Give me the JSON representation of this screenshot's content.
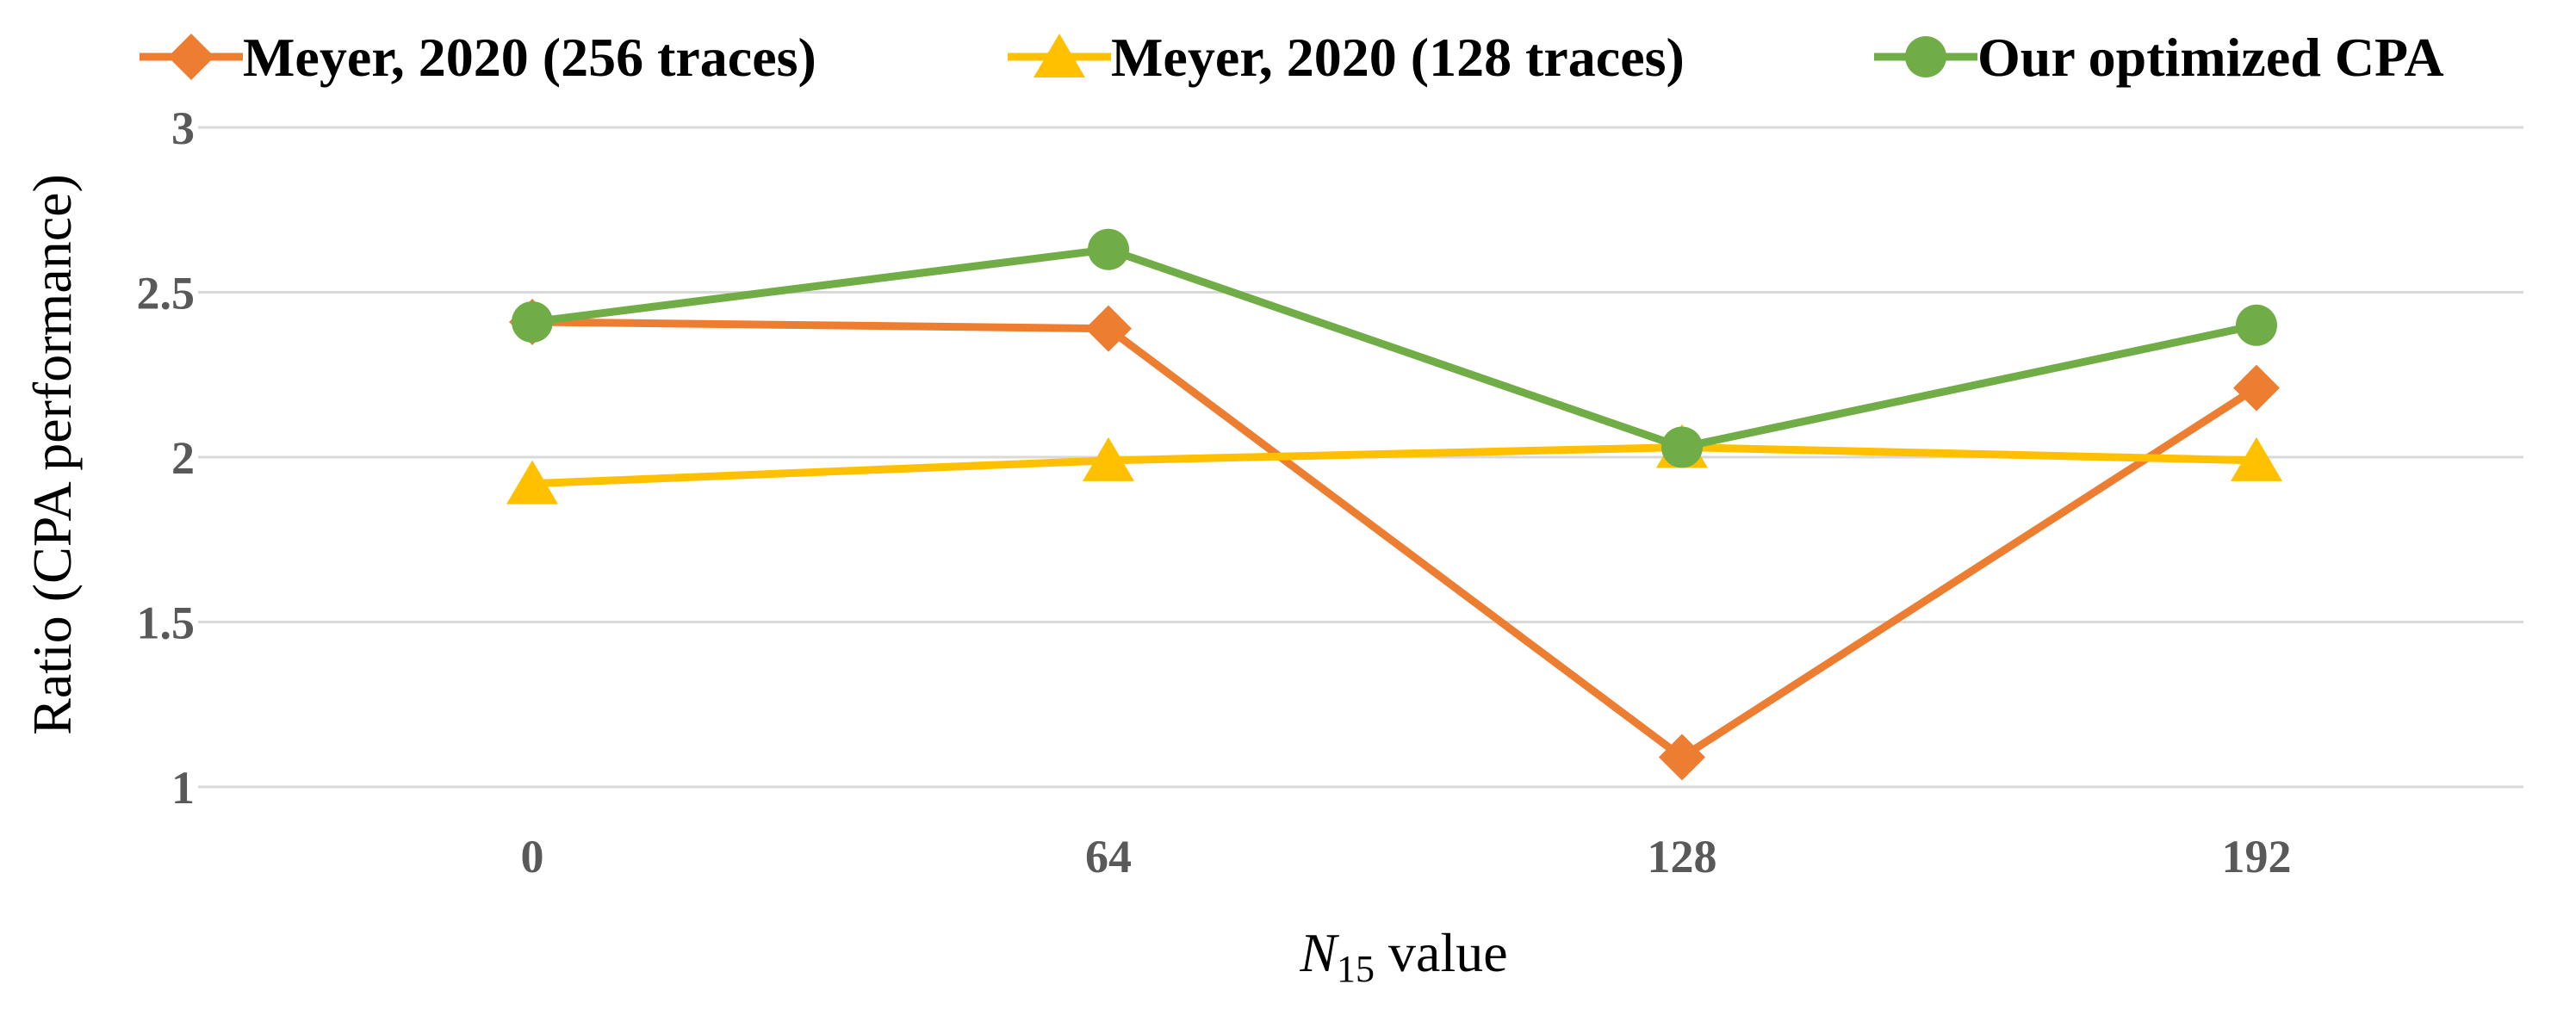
{
  "chart_data": {
    "type": "line",
    "x": [
      "0",
      "64",
      "128",
      "192"
    ],
    "xlabel": {
      "symbol": "N",
      "subscript": "15",
      "rest": " value"
    },
    "ylabel": "Ratio (CPA performance)",
    "ylim": [
      1,
      3
    ],
    "yticks": [
      "1",
      "1.5",
      "2",
      "2.5",
      "3"
    ],
    "grid": true,
    "legend_position": "top",
    "series": [
      {
        "name": "Meyer, 2020 (256 traces)",
        "values": [
          2.41,
          2.39,
          1.09,
          2.21
        ],
        "color": "#ed7d31",
        "marker": "diamond"
      },
      {
        "name": "Meyer, 2020 (128 traces)",
        "values": [
          1.92,
          1.99,
          2.03,
          1.99
        ],
        "color": "#ffc000",
        "marker": "triangle"
      },
      {
        "name": "Our optimized CPA",
        "values": [
          2.41,
          2.63,
          2.03,
          2.4
        ],
        "color": "#70ad47",
        "marker": "circle"
      }
    ]
  }
}
